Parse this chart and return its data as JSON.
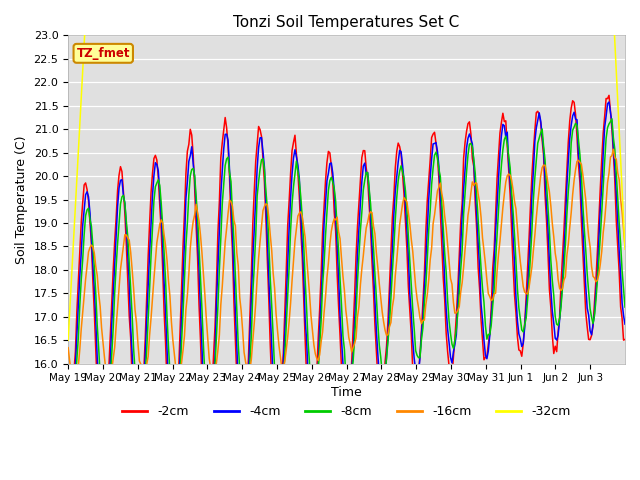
{
  "title": "Tonzi Soil Temperatures Set C",
  "xlabel": "Time",
  "ylabel": "Soil Temperature (C)",
  "ylim": [
    16.0,
    23.0
  ],
  "yticks": [
    16.0,
    16.5,
    17.0,
    17.5,
    18.0,
    18.5,
    19.0,
    19.5,
    20.0,
    20.5,
    21.0,
    21.5,
    22.0,
    22.5,
    23.0
  ],
  "colors": {
    "-2cm": "#ff0000",
    "-4cm": "#0000ff",
    "-8cm": "#00cc00",
    "-16cm": "#ff8800",
    "-32cm": "#ffff00"
  },
  "annotation_label": "TZ_fmet",
  "annotation_color": "#cc0000",
  "annotation_bg": "#ffff99",
  "annotation_border": "#cc8800",
  "xtick_labels": [
    "May 19",
    "May 20",
    "May 21",
    "May 22",
    "May 23",
    "May 24",
    "May 25",
    "May 26",
    "May 27",
    "May 28",
    "May 29",
    "May 30",
    "May 31",
    "Jun 1",
    "Jun 2",
    "Jun 3"
  ],
  "xtick_positions": [
    0,
    1,
    2,
    3,
    4,
    5,
    6,
    7,
    8,
    9,
    10,
    11,
    12,
    13,
    14,
    15
  ]
}
